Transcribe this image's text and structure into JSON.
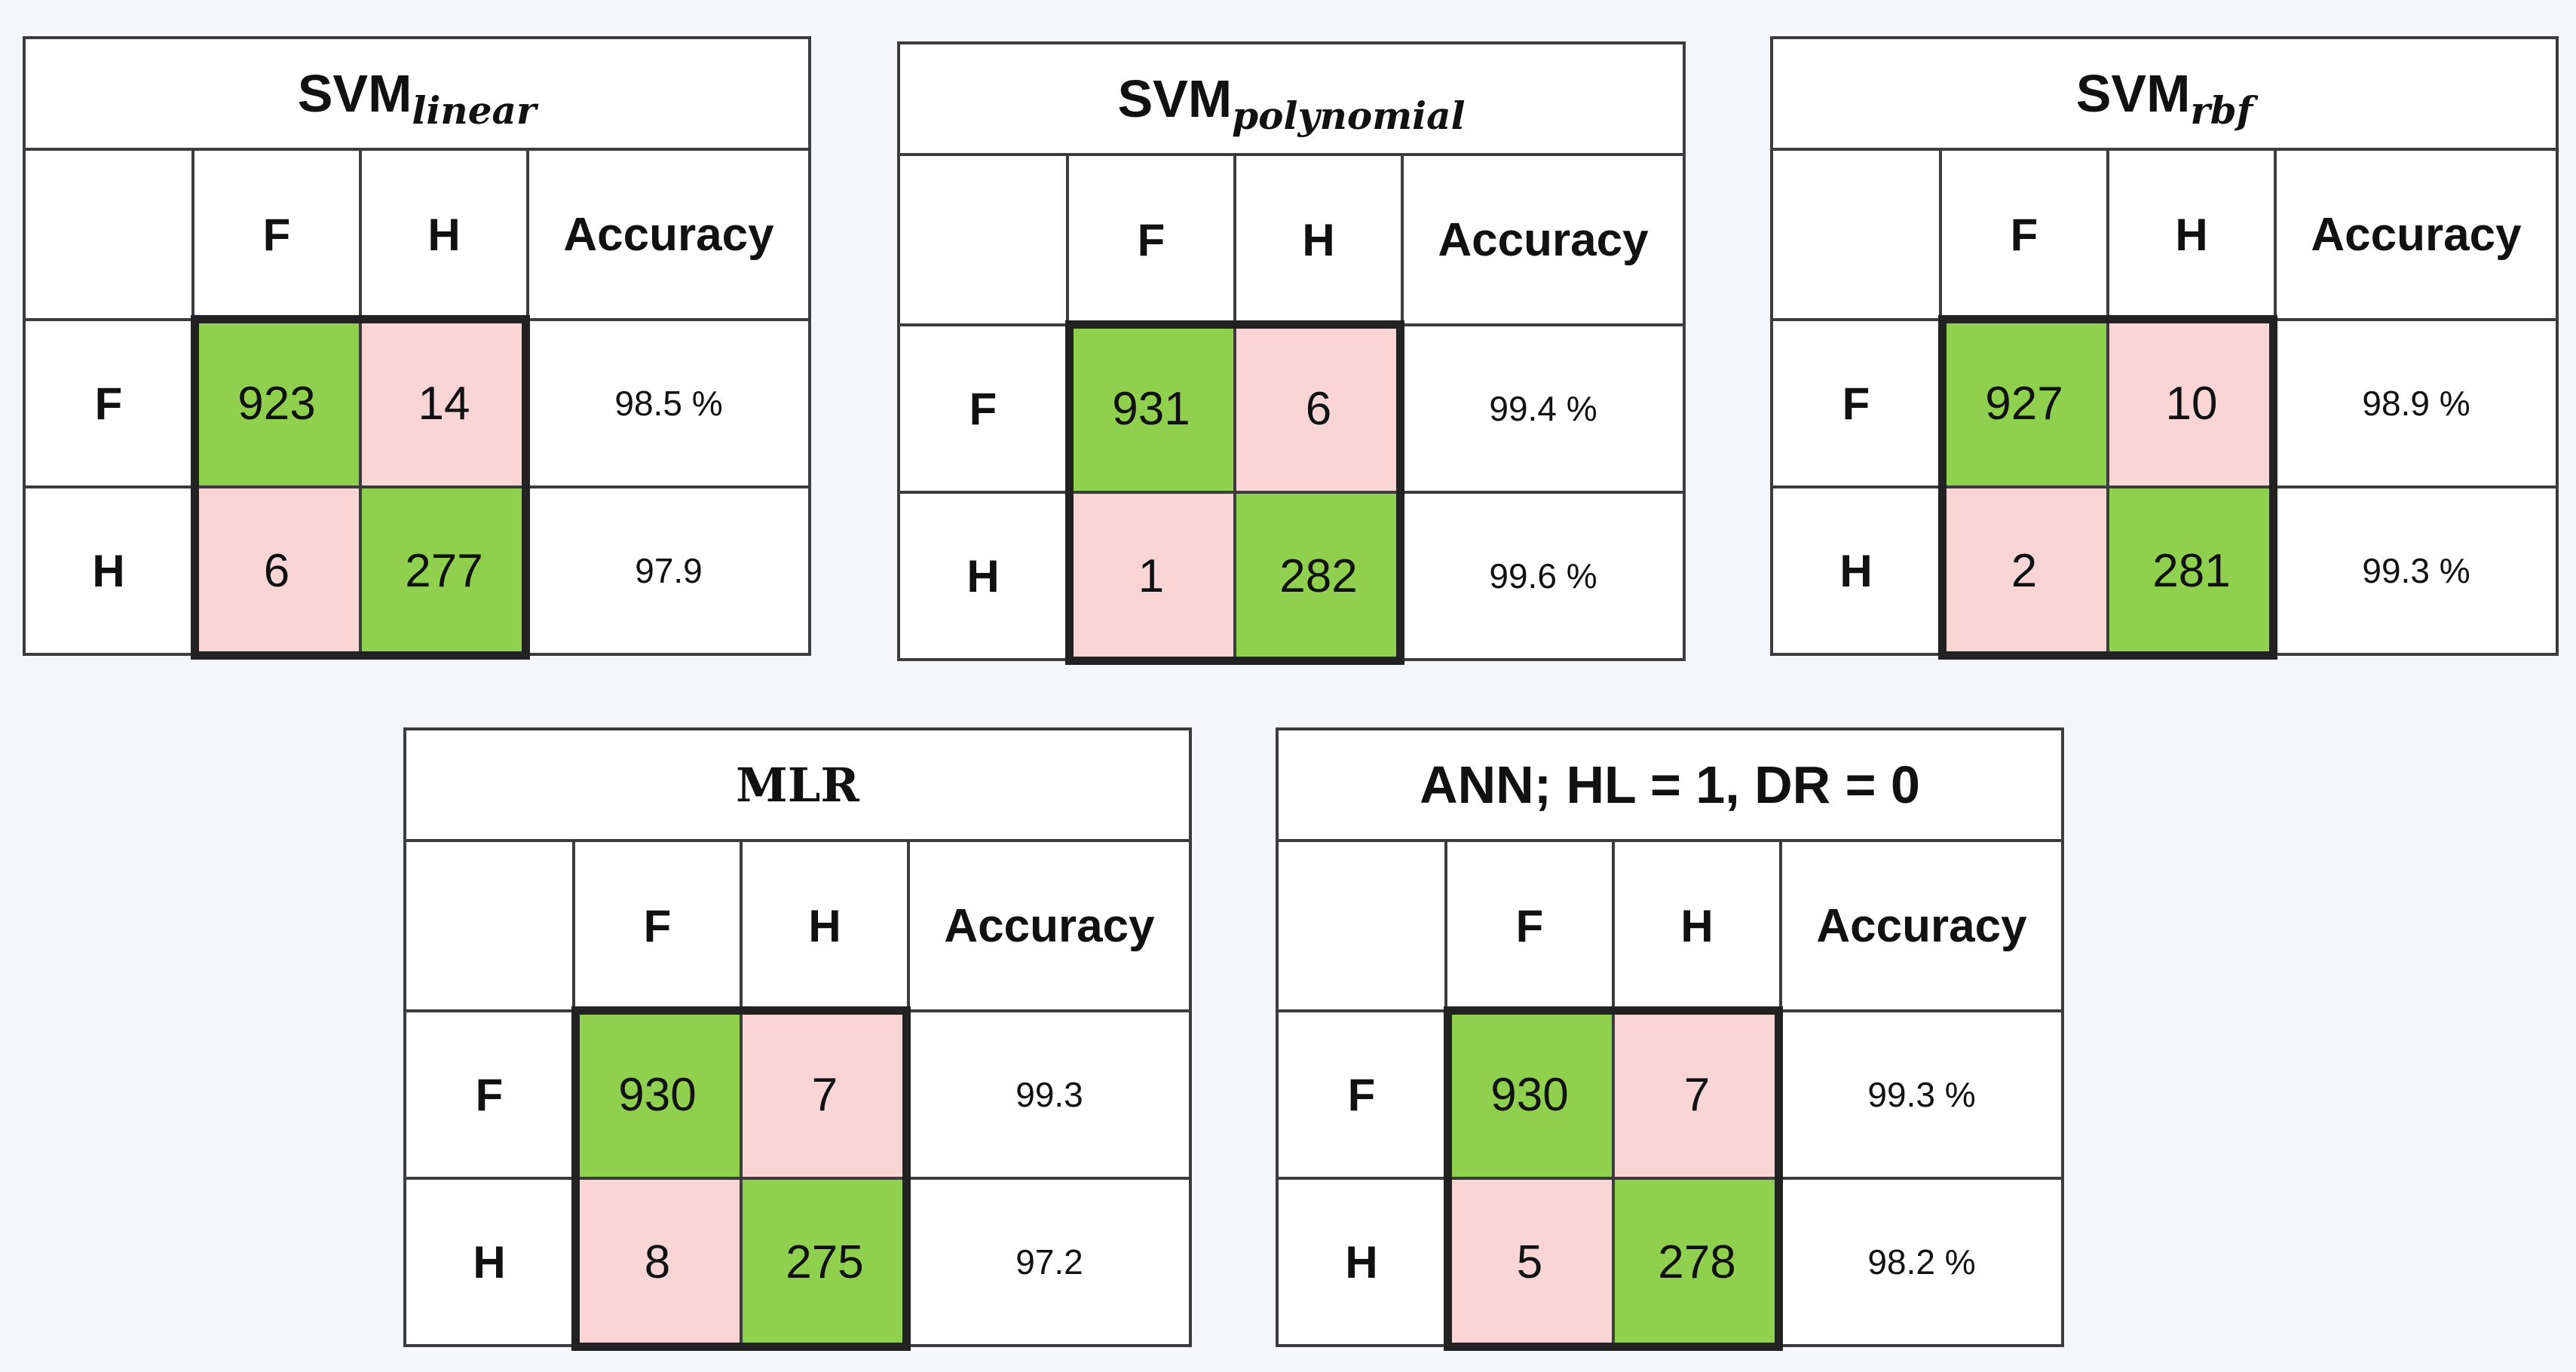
{
  "column_headers": [
    "F",
    "H"
  ],
  "accuracy_header": "Accuracy",
  "row_headers": [
    "F",
    "H"
  ],
  "colors": {
    "correct": "#8fd14f",
    "error": "#f9d5d5",
    "border": "#3c3c3c"
  },
  "matrices": [
    {
      "title_main": "SVM",
      "title_sub": "linear",
      "cells": [
        [
          "923",
          "14"
        ],
        [
          "6",
          "277"
        ]
      ],
      "accuracy": [
        "98.5 %",
        "97.9"
      ]
    },
    {
      "title_main": "SVM",
      "title_sub": "polynomial",
      "cells": [
        [
          "931",
          "6"
        ],
        [
          "1",
          "282"
        ]
      ],
      "accuracy": [
        "99.4 %",
        "99.6 %"
      ]
    },
    {
      "title_main": "SVM",
      "title_sub": "rbf",
      "cells": [
        [
          "927",
          "10"
        ],
        [
          "2",
          "281"
        ]
      ],
      "accuracy": [
        "98.9 %",
        "99.3 %"
      ]
    },
    {
      "title_main": "MLR",
      "title_sub": "",
      "cells": [
        [
          "930",
          "7"
        ],
        [
          "8",
          "275"
        ]
      ],
      "accuracy": [
        "99.3",
        "97.2"
      ]
    },
    {
      "title_main": "ANN; HL = 1, DR = 0",
      "title_sub": "",
      "cells": [
        [
          "930",
          "7"
        ],
        [
          "5",
          "278"
        ]
      ],
      "accuracy": [
        "99.3 %",
        "98.2 %"
      ]
    }
  ]
}
